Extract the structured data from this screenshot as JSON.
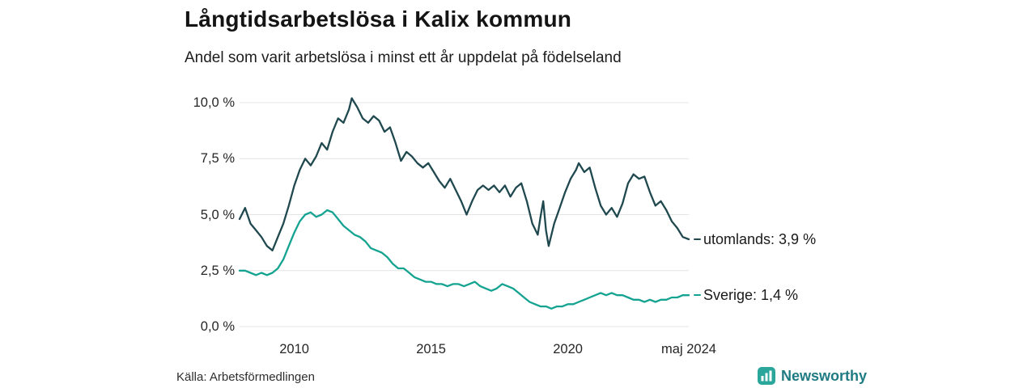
{
  "header": {
    "title": "Långtidsarbetslösa i Kalix kommun",
    "subtitle": "Andel som varit arbetslösa i minst ett år uppdelat på födelseland"
  },
  "footer": {
    "source": "Källa: Arbetsförmedlingen",
    "brand_name": "Newsworthy",
    "brand_icon": "bar-chart-icon",
    "brand_icon_color": "#2aa69b",
    "brand_text_color": "#1f7b82"
  },
  "chart_data": {
    "type": "line",
    "title": "Långtidsarbetslösa i Kalix kommun",
    "subtitle": "Andel som varit arbetslösa i minst ett år uppdelat på födelseland",
    "xlabel": "",
    "ylabel": "",
    "xlim": [
      2008.0,
      2024.42
    ],
    "ylim": [
      0,
      10
    ],
    "grid": "horizontal",
    "grid_color": "#e4e4e4",
    "legend_position": "right-end-labels",
    "y_ticks": [
      {
        "label": "0,0 %",
        "value": 0
      },
      {
        "label": "2,5 %",
        "value": 2.5
      },
      {
        "label": "5,0 %",
        "value": 5.0
      },
      {
        "label": "7,5 %",
        "value": 7.5
      },
      {
        "label": "10,0 %",
        "value": 10.0
      }
    ],
    "x_ticks": [
      {
        "label": "2010",
        "value": 2010
      },
      {
        "label": "2015",
        "value": 2015
      },
      {
        "label": "2020",
        "value": 2020
      },
      {
        "label": "maj 2024",
        "value": 2024.42
      }
    ],
    "series": [
      {
        "name": "utomlands",
        "end_label": "utomlands: 3,9 %",
        "last_value_text": "3,9 %",
        "color": "#20484f",
        "x": [
          2008.0,
          2008.2,
          2008.4,
          2008.6,
          2008.8,
          2009.0,
          2009.2,
          2009.4,
          2009.6,
          2009.8,
          2010.0,
          2010.2,
          2010.4,
          2010.6,
          2010.8,
          2011.0,
          2011.2,
          2011.4,
          2011.6,
          2011.8,
          2012.0,
          2012.1,
          2012.3,
          2012.5,
          2012.7,
          2012.9,
          2013.1,
          2013.3,
          2013.5,
          2013.7,
          2013.9,
          2014.1,
          2014.3,
          2014.5,
          2014.7,
          2014.9,
          2015.1,
          2015.3,
          2015.5,
          2015.7,
          2015.9,
          2016.1,
          2016.3,
          2016.5,
          2016.7,
          2016.9,
          2017.1,
          2017.3,
          2017.5,
          2017.7,
          2017.9,
          2018.1,
          2018.3,
          2018.5,
          2018.7,
          2018.9,
          2019.0,
          2019.1,
          2019.2,
          2019.3,
          2019.5,
          2019.7,
          2019.9,
          2020.1,
          2020.3,
          2020.4,
          2020.6,
          2020.8,
          2021.0,
          2021.2,
          2021.4,
          2021.6,
          2021.8,
          2022.0,
          2022.2,
          2022.4,
          2022.6,
          2022.8,
          2023.0,
          2023.2,
          2023.4,
          2023.6,
          2023.8,
          2024.0,
          2024.2,
          2024.42
        ],
        "y": [
          4.8,
          5.3,
          4.6,
          4.3,
          4.0,
          3.6,
          3.4,
          4.0,
          4.6,
          5.4,
          6.3,
          7.0,
          7.5,
          7.2,
          7.6,
          8.2,
          7.9,
          8.7,
          9.3,
          9.1,
          9.7,
          10.2,
          9.8,
          9.3,
          9.1,
          9.4,
          9.2,
          8.7,
          8.9,
          8.2,
          7.4,
          7.8,
          7.6,
          7.3,
          7.1,
          7.3,
          6.9,
          6.5,
          6.2,
          6.6,
          6.1,
          5.6,
          5.0,
          5.6,
          6.1,
          6.3,
          6.1,
          6.3,
          6.0,
          6.3,
          5.8,
          6.2,
          6.4,
          5.6,
          4.6,
          4.1,
          4.9,
          5.6,
          4.3,
          3.6,
          4.6,
          5.3,
          6.0,
          6.6,
          7.0,
          7.3,
          6.9,
          7.1,
          6.2,
          5.4,
          5.0,
          5.3,
          4.9,
          5.5,
          6.4,
          6.8,
          6.6,
          6.7,
          6.0,
          5.4,
          5.6,
          5.2,
          4.7,
          4.4,
          4.0,
          3.9
        ]
      },
      {
        "name": "Sverige",
        "end_label": "Sverige: 1,4 %",
        "last_value_text": "1,4 %",
        "color": "#14a390",
        "x": [
          2008.0,
          2008.2,
          2008.4,
          2008.6,
          2008.8,
          2009.0,
          2009.2,
          2009.4,
          2009.6,
          2009.8,
          2010.0,
          2010.2,
          2010.4,
          2010.6,
          2010.8,
          2011.0,
          2011.2,
          2011.4,
          2011.6,
          2011.8,
          2012.0,
          2012.2,
          2012.4,
          2012.6,
          2012.8,
          2013.0,
          2013.2,
          2013.4,
          2013.6,
          2013.8,
          2014.0,
          2014.2,
          2014.4,
          2014.6,
          2014.8,
          2015.0,
          2015.2,
          2015.4,
          2015.6,
          2015.8,
          2016.0,
          2016.2,
          2016.4,
          2016.6,
          2016.8,
          2017.0,
          2017.2,
          2017.4,
          2017.6,
          2017.8,
          2018.0,
          2018.2,
          2018.4,
          2018.6,
          2018.8,
          2019.0,
          2019.2,
          2019.4,
          2019.6,
          2019.8,
          2020.0,
          2020.2,
          2020.4,
          2020.6,
          2020.8,
          2021.0,
          2021.2,
          2021.4,
          2021.6,
          2021.8,
          2022.0,
          2022.2,
          2022.4,
          2022.6,
          2022.8,
          2023.0,
          2023.2,
          2023.4,
          2023.6,
          2023.8,
          2024.0,
          2024.2,
          2024.42
        ],
        "y": [
          2.5,
          2.5,
          2.4,
          2.3,
          2.4,
          2.3,
          2.4,
          2.6,
          3.0,
          3.6,
          4.2,
          4.7,
          5.0,
          5.1,
          4.9,
          5.0,
          5.2,
          5.1,
          4.8,
          4.5,
          4.3,
          4.1,
          4.0,
          3.8,
          3.5,
          3.4,
          3.3,
          3.1,
          2.8,
          2.6,
          2.6,
          2.4,
          2.2,
          2.1,
          2.0,
          2.0,
          1.9,
          1.9,
          1.8,
          1.9,
          1.9,
          1.8,
          1.9,
          2.0,
          1.8,
          1.7,
          1.6,
          1.7,
          1.9,
          1.8,
          1.7,
          1.5,
          1.3,
          1.1,
          1.0,
          0.9,
          0.9,
          0.8,
          0.9,
          0.9,
          1.0,
          1.0,
          1.1,
          1.2,
          1.3,
          1.4,
          1.5,
          1.4,
          1.5,
          1.4,
          1.4,
          1.3,
          1.2,
          1.2,
          1.1,
          1.2,
          1.1,
          1.2,
          1.2,
          1.3,
          1.3,
          1.4,
          1.4
        ]
      }
    ]
  }
}
